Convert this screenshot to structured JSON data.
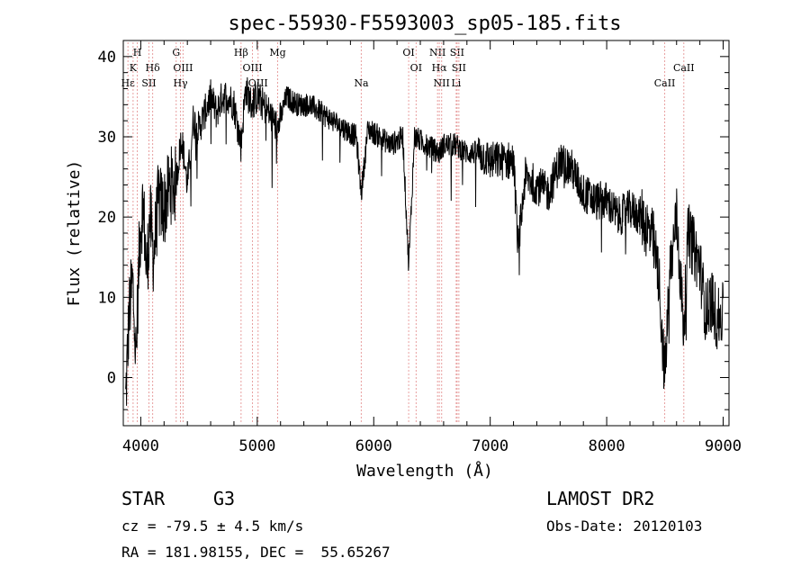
{
  "chart_data": {
    "type": "line",
    "title": "spec-55930-F5593003_sp05-185.fits",
    "xlabel": "Wavelength (Å)",
    "ylabel": "Flux (relative)",
    "xlim": [
      3850,
      9050
    ],
    "ylim": [
      -6,
      42
    ],
    "x_ticks": [
      4000,
      5000,
      6000,
      7000,
      8000,
      9000
    ],
    "y_ticks": [
      0,
      10,
      20,
      30,
      40
    ],
    "grid": false,
    "spectrum_anchors": {
      "x": [
        3870,
        3900,
        3930,
        3960,
        3990,
        4020,
        4050,
        4080,
        4110,
        4150,
        4200,
        4250,
        4300,
        4350,
        4400,
        4450,
        4500,
        4550,
        4600,
        4650,
        4700,
        4750,
        4800,
        4860,
        4900,
        4950,
        5000,
        5100,
        5175,
        5250,
        5350,
        5450,
        5550,
        5650,
        5750,
        5850,
        5893,
        5950,
        6050,
        6150,
        6250,
        6300,
        6350,
        6450,
        6563,
        6600,
        6700,
        6800,
        6900,
        7000,
        7100,
        7200,
        7240,
        7300,
        7400,
        7500,
        7600,
        7700,
        7800,
        7900,
        8000,
        8100,
        8200,
        8300,
        8400,
        8450,
        8498,
        8542,
        8600,
        8662,
        8700,
        8750,
        8800,
        8850,
        8900,
        8950,
        9000
      ],
      "y": [
        -3,
        8,
        12,
        2,
        17,
        22,
        13,
        20,
        15,
        22,
        21,
        24,
        24,
        30,
        24,
        32,
        31,
        33,
        35,
        33,
        35,
        35,
        34,
        29,
        36,
        34,
        35,
        33,
        31,
        35,
        34,
        34,
        33,
        32,
        31,
        30,
        23,
        31,
        30,
        29,
        30,
        14,
        30,
        29,
        28,
        29,
        29,
        28,
        28,
        27,
        27,
        27,
        16,
        25,
        24,
        23,
        27,
        26,
        23,
        22,
        22,
        20,
        21,
        20,
        17,
        12,
        0,
        13,
        20,
        6,
        18,
        16,
        14,
        8,
        10,
        7,
        8
      ]
    },
    "spectral_lines": [
      {
        "label": "H",
        "x": 3970,
        "tier": 0
      },
      {
        "label": "K",
        "x": 3934,
        "tier": 1
      },
      {
        "label": "Hε",
        "x": 3890,
        "tier": 2
      },
      {
        "label": "Hδ",
        "x": 4102,
        "tier": 1
      },
      {
        "label": "SII",
        "x": 4070,
        "tier": 2
      },
      {
        "label": "G",
        "x": 4304,
        "tier": 0
      },
      {
        "label": "OIII",
        "x": 4363,
        "tier": 1
      },
      {
        "label": "Hγ",
        "x": 4341,
        "tier": 2
      },
      {
        "label": "Hβ",
        "x": 4861,
        "tier": 0
      },
      {
        "label": "OIII",
        "x": 4959,
        "tier": 1
      },
      {
        "label": "OIII",
        "x": 5007,
        "tier": 2
      },
      {
        "label": "Mg",
        "x": 5175,
        "tier": 0
      },
      {
        "label": "Na",
        "x": 5893,
        "tier": 2
      },
      {
        "label": "OI",
        "x": 6300,
        "tier": 0
      },
      {
        "label": "OI",
        "x": 6364,
        "tier": 1
      },
      {
        "label": "NII",
        "x": 6548,
        "tier": 0
      },
      {
        "label": "SII",
        "x": 6716,
        "tier": 0
      },
      {
        "label": "Hα",
        "x": 6563,
        "tier": 1
      },
      {
        "label": "SII",
        "x": 6731,
        "tier": 1
      },
      {
        "label": "NII",
        "x": 6583,
        "tier": 2
      },
      {
        "label": "Li",
        "x": 6708,
        "tier": 2
      },
      {
        "label": "CaII",
        "x": 8662,
        "tier": 1
      },
      {
        "label": "CaII",
        "x": 8498,
        "tier": 2
      }
    ]
  },
  "info": {
    "object_class": "STAR",
    "subclass": "G3",
    "survey": "LAMOST DR2",
    "cz": "cz = -79.5 ± 4.5 km/s",
    "obs_date": "Obs-Date: 20120103",
    "coords": "RA = 181.98155, DEC =  55.65267"
  },
  "colors": {
    "spectrum": "#000000",
    "line_markers": "#e8a0a0",
    "axes": "#000000"
  }
}
